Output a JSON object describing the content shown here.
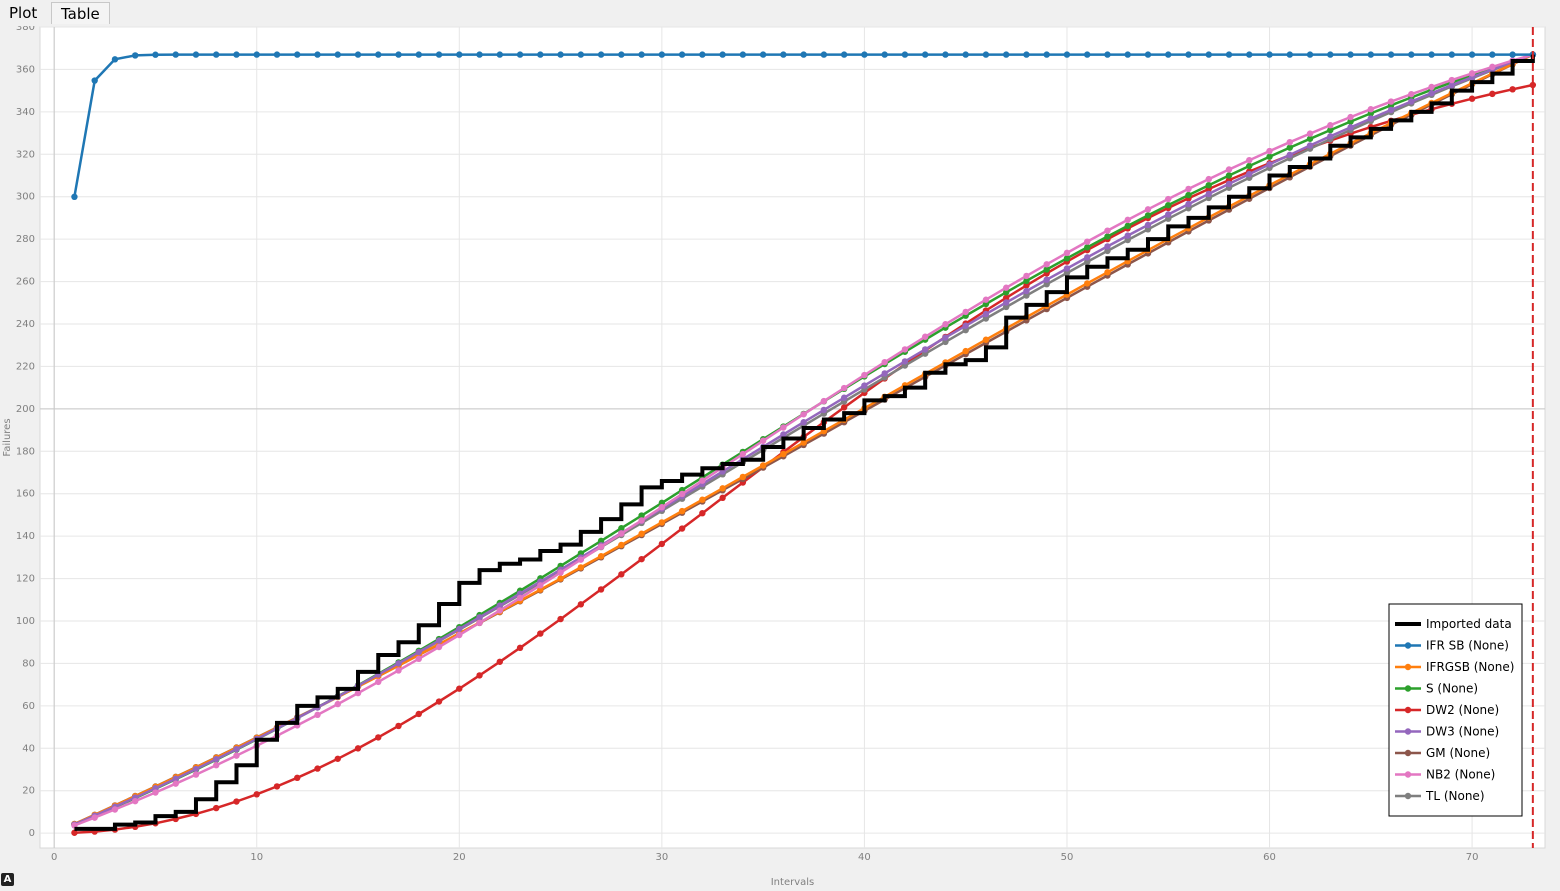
{
  "tabs": [
    {
      "label": "Plot"
    },
    {
      "label": "Table"
    }
  ],
  "status_icon": "A",
  "chart_data": {
    "type": "line",
    "title": "",
    "xlabel": "Intervals",
    "ylabel": "Failures",
    "xlim": [
      -0.7,
      73.6
    ],
    "ylim": [
      -7,
      380
    ],
    "x_ticks": [
      0,
      10,
      20,
      30,
      40,
      50,
      60,
      70
    ],
    "y_ticks": [
      0,
      20,
      40,
      60,
      80,
      100,
      120,
      140,
      160,
      180,
      200,
      220,
      240,
      260,
      280,
      300,
      320,
      340,
      360,
      380
    ],
    "grid": true,
    "vertical_marker_x": 73,
    "vertical_marker_color": "#d62728",
    "legend_position": "bottom-right",
    "imported_data": {
      "name": "Imported data",
      "color": "#000000",
      "step_points": [
        [
          1,
          2
        ],
        [
          2,
          2
        ],
        [
          3,
          4
        ],
        [
          4,
          5
        ],
        [
          5,
          8
        ],
        [
          6,
          10
        ],
        [
          7,
          16
        ],
        [
          8,
          24
        ],
        [
          9,
          32
        ],
        [
          10,
          44
        ],
        [
          11,
          52
        ],
        [
          12,
          60
        ],
        [
          13,
          64
        ],
        [
          14,
          68
        ],
        [
          15,
          76
        ],
        [
          16,
          84
        ],
        [
          17,
          90
        ],
        [
          18,
          98
        ],
        [
          19,
          108
        ],
        [
          20,
          118
        ],
        [
          21,
          124
        ],
        [
          22,
          127
        ],
        [
          23,
          129
        ],
        [
          24,
          133
        ],
        [
          25,
          136
        ],
        [
          26,
          142
        ],
        [
          27,
          148
        ],
        [
          28,
          155
        ],
        [
          29,
          163
        ],
        [
          30,
          166
        ],
        [
          31,
          169
        ],
        [
          32,
          172
        ],
        [
          33,
          174
        ],
        [
          34,
          176
        ],
        [
          35,
          182
        ],
        [
          36,
          186
        ],
        [
          37,
          191
        ],
        [
          38,
          195
        ],
        [
          39,
          198
        ],
        [
          40,
          204
        ],
        [
          41,
          206
        ],
        [
          42,
          210
        ],
        [
          43,
          217
        ],
        [
          44,
          221
        ],
        [
          45,
          223
        ],
        [
          46,
          229
        ],
        [
          47,
          243
        ],
        [
          48,
          249
        ],
        [
          49,
          255
        ],
        [
          50,
          262
        ],
        [
          51,
          267
        ],
        [
          52,
          271
        ],
        [
          53,
          275
        ],
        [
          54,
          280
        ],
        [
          55,
          286
        ],
        [
          56,
          290
        ],
        [
          57,
          295
        ],
        [
          58,
          300
        ],
        [
          59,
          304
        ],
        [
          60,
          310
        ],
        [
          61,
          314
        ],
        [
          62,
          318
        ],
        [
          63,
          324
        ],
        [
          64,
          328
        ],
        [
          65,
          332
        ],
        [
          66,
          336
        ],
        [
          67,
          340
        ],
        [
          68,
          344
        ],
        [
          69,
          350
        ],
        [
          70,
          354
        ],
        [
          71,
          358
        ],
        [
          72,
          364
        ],
        [
          73,
          367
        ]
      ]
    },
    "series": [
      {
        "name": "IFR SB (None)",
        "color": "#1f77b4",
        "model": "saturation",
        "params": {
          "a": 367,
          "b": 1.7
        }
      },
      {
        "name": "IFRGSB (None)",
        "color": "#ff7f0e",
        "model": "logistic",
        "params": {
          "k": 0.026,
          "x0": 38.5,
          "scale": 1.9
        }
      },
      {
        "name": "S (None)",
        "color": "#2ca02c",
        "model": "logistic",
        "params": {
          "k": 0.042,
          "x0": 32.0,
          "scale": 1.35
        }
      },
      {
        "name": "DW2 (None)",
        "color": "#d62728",
        "model": "weibull",
        "params": {
          "a": 380,
          "theta": 45.0,
          "m": 2.0
        }
      },
      {
        "name": "DW3 (None)",
        "color": "#9467bd",
        "model": "logistic",
        "params": {
          "k": 0.038,
          "x0": 33.0,
          "scale": 1.46
        }
      },
      {
        "name": "GM (None)",
        "color": "#8c564b",
        "model": "logistic",
        "params": {
          "k": 0.024,
          "x0": 40.0,
          "scale": 2.05
        }
      },
      {
        "name": "NB2 (None)",
        "color": "#e377c2",
        "model": "logistic",
        "params": {
          "k": 0.048,
          "x0": 33.0,
          "scale": 1.18
        }
      },
      {
        "name": "TL (None)",
        "color": "#7f7f7f",
        "model": "logistic",
        "params": {
          "k": 0.036,
          "x0": 33.5,
          "scale": 1.52
        }
      }
    ]
  }
}
